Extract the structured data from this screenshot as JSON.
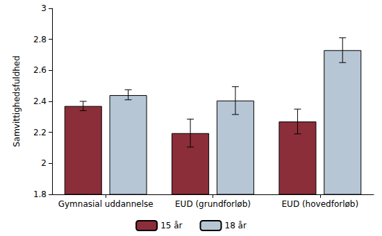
{
  "chart_data": {
    "type": "bar",
    "y_label": "Samvittighedsfuldhed",
    "categories": [
      "Gymnasial uddannelse",
      "EUD (grundforløb)",
      "EUD (hovedforløb)"
    ],
    "series": [
      {
        "name": "15 år",
        "color": "#8b2e3a",
        "values": [
          2.37,
          2.195,
          2.27
        ],
        "ci": [
          [
            2.34,
            2.4
          ],
          [
            2.105,
            2.285
          ],
          [
            2.19,
            2.35
          ]
        ]
      },
      {
        "name": "18 år",
        "color": "#b7c6d5",
        "values": [
          2.44,
          2.405,
          2.73
        ],
        "ci": [
          [
            2.41,
            2.475
          ],
          [
            2.315,
            2.495
          ],
          [
            2.65,
            2.81
          ]
        ]
      }
    ],
    "ylim": [
      1.8,
      3
    ],
    "yticks": [
      1.8,
      2,
      2.2,
      2.4,
      2.6,
      2.8,
      3
    ],
    "grid": false,
    "legend": "bottom"
  }
}
